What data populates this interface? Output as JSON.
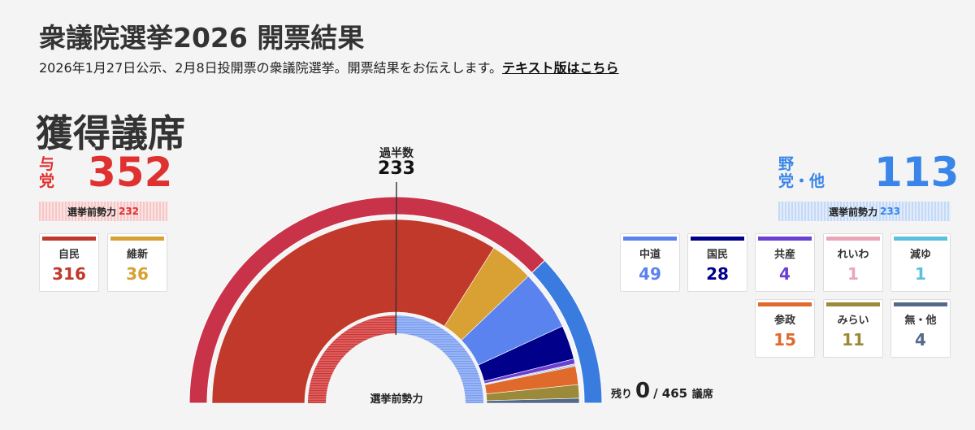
{
  "page": {
    "title": "衆議院選挙2026 開票結果",
    "subtitle": "2026年1月27日公示、2月8日投開票の衆議院選挙。開票結果をお伝えします。",
    "text_version_link": "テキスト版はこちら",
    "heading": "獲得議席"
  },
  "ruling": {
    "label_line1": "与",
    "label_line2": "党",
    "total": "352",
    "prev_label": "選挙前勢力",
    "prev_value": "232",
    "color": "#e03131"
  },
  "opposition": {
    "label_line1": "野",
    "label_line2": "党・他",
    "total": "113",
    "prev_label": "選挙前勢力",
    "prev_value": "233",
    "color": "#3a86e8"
  },
  "majority": {
    "label": "過半数",
    "value": "233"
  },
  "center_label": "選挙前勢力",
  "remaining": {
    "label": "残り",
    "value": "0",
    "total": "/ 465",
    "unit": "議席"
  },
  "parties": [
    {
      "name": "自民",
      "seats": "316",
      "color": "#c0392b",
      "text_color": "#c0392b",
      "bloc": "ruling"
    },
    {
      "name": "維新",
      "seats": "36",
      "color": "#d9a033",
      "text_color": "#d9a033",
      "bloc": "ruling"
    },
    {
      "name": "中道",
      "seats": "49",
      "color": "#5b83f0",
      "text_color": "#5b83f0",
      "bloc": "opposition"
    },
    {
      "name": "国民",
      "seats": "28",
      "color": "#00008b",
      "text_color": "#00008b",
      "bloc": "opposition"
    },
    {
      "name": "共産",
      "seats": "4",
      "color": "#6a3fd4",
      "text_color": "#6a3fd4",
      "bloc": "opposition"
    },
    {
      "name": "れいわ",
      "seats": "1",
      "color": "#e8a7b8",
      "text_color": "#e8a7b8",
      "bloc": "opposition"
    },
    {
      "name": "減ゆ",
      "seats": "1",
      "color": "#5bc0de",
      "text_color": "#5bc0de",
      "bloc": "opposition"
    },
    {
      "name": "参政",
      "seats": "15",
      "color": "#e06a2b",
      "text_color": "#e06a2b",
      "bloc": "opposition"
    },
    {
      "name": "みらい",
      "seats": "11",
      "color": "#9a8a3a",
      "text_color": "#9a8a3a",
      "bloc": "opposition"
    },
    {
      "name": "無・他",
      "seats": "4",
      "color": "#546a8a",
      "text_color": "#546a8a",
      "bloc": "opposition"
    }
  ],
  "chart_data": {
    "type": "pie",
    "subtype": "semicircle_parliament",
    "total_seats": 465,
    "majority": 233,
    "remaining": 0,
    "outer_ring": [
      {
        "name": "与党",
        "value": 352,
        "color": "#c8334a"
      },
      {
        "name": "野党・他",
        "value": 113,
        "color": "#3a7be0"
      }
    ],
    "series": [
      {
        "name": "自民",
        "value": 316,
        "color": "#c0392b"
      },
      {
        "name": "維新",
        "value": 36,
        "color": "#d9a033"
      },
      {
        "name": "中道",
        "value": 49,
        "color": "#5b83f0"
      },
      {
        "name": "国民",
        "value": 28,
        "color": "#00008b"
      },
      {
        "name": "共産",
        "value": 4,
        "color": "#6a3fd4"
      },
      {
        "name": "れいわ",
        "value": 1,
        "color": "#e8a7b8"
      },
      {
        "name": "減ゆ",
        "value": 1,
        "color": "#5bc0de"
      },
      {
        "name": "参政",
        "value": 15,
        "color": "#e06a2b"
      },
      {
        "name": "みらい",
        "value": 11,
        "color": "#9a8a3a"
      },
      {
        "name": "無・他",
        "value": 4,
        "color": "#546a8a"
      }
    ],
    "before_election": {
      "ruling": 232,
      "opposition": 233
    }
  }
}
